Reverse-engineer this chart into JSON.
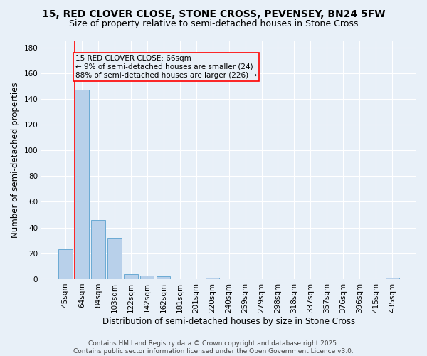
{
  "title_line1": "15, RED CLOVER CLOSE, STONE CROSS, PEVENSEY, BN24 5FW",
  "title_line2": "Size of property relative to semi-detached houses in Stone Cross",
  "xlabel": "Distribution of semi-detached houses by size in Stone Cross",
  "ylabel": "Number of semi-detached properties",
  "categories": [
    "45sqm",
    "64sqm",
    "84sqm",
    "103sqm",
    "122sqm",
    "142sqm",
    "162sqm",
    "181sqm",
    "201sqm",
    "220sqm",
    "240sqm",
    "259sqm",
    "279sqm",
    "298sqm",
    "318sqm",
    "337sqm",
    "357sqm",
    "376sqm",
    "396sqm",
    "415sqm",
    "435sqm"
  ],
  "values": [
    23,
    147,
    46,
    32,
    4,
    3,
    2,
    0,
    0,
    1,
    0,
    0,
    0,
    0,
    0,
    0,
    0,
    0,
    0,
    0,
    1
  ],
  "bar_color": "#b8d0ea",
  "bar_edge_color": "#6aaad4",
  "ylim": [
    0,
    185
  ],
  "yticks": [
    0,
    20,
    40,
    60,
    80,
    100,
    120,
    140,
    160,
    180
  ],
  "vline_color": "red",
  "annotation_text": "15 RED CLOVER CLOSE: 66sqm\n← 9% of semi-detached houses are smaller (24)\n88% of semi-detached houses are larger (226) →",
  "footer_text": "Contains HM Land Registry data © Crown copyright and database right 2025.\nContains public sector information licensed under the Open Government Licence v3.0.",
  "background_color": "#e8f0f8",
  "grid_color": "#ffffff",
  "title_fontsize": 10,
  "subtitle_fontsize": 9,
  "axis_label_fontsize": 8.5,
  "tick_fontsize": 7.5,
  "annotation_fontsize": 7.5,
  "footer_fontsize": 6.5
}
